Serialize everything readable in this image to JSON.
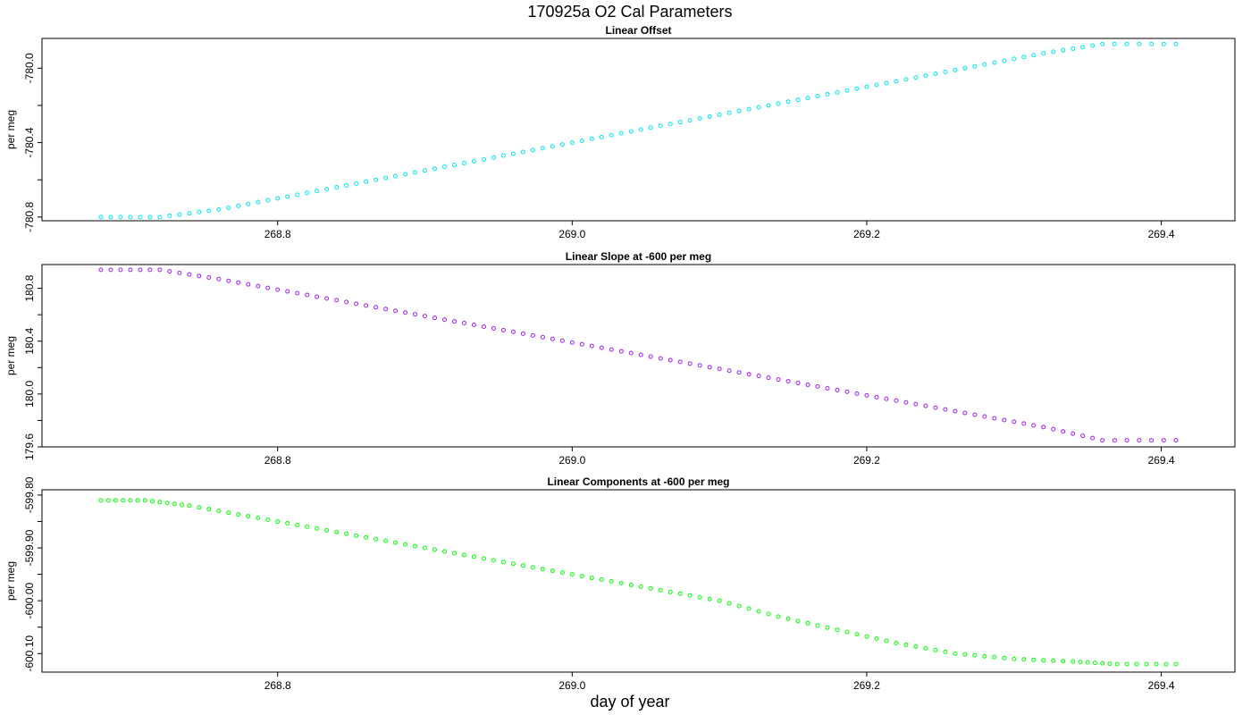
{
  "figure": {
    "title": "170925a   O2 Cal Parameters",
    "xlabel": "day of year"
  },
  "chart_data": [
    {
      "type": "scatter",
      "title": "Linear Offset",
      "ylabel": "per meg",
      "xlim": [
        268.64,
        269.45
      ],
      "ylim": [
        -780.82,
        -779.84
      ],
      "x_ticks": [
        "268.8",
        "269.0",
        "269.2",
        "269.4"
      ],
      "y_ticks": [
        "-780.0",
        "-780.4",
        "-780.8"
      ],
      "color": "#00e5ee",
      "series": [
        {
          "x": [
            268.68,
            268.72,
            268.76,
            268.8,
            268.84,
            268.88,
            268.92,
            268.96,
            269.0,
            269.04,
            269.08,
            269.12,
            269.16,
            269.2,
            269.24,
            269.28,
            269.32,
            269.36,
            269.41
          ],
          "y": [
            -780.8,
            -780.8,
            -780.76,
            -780.7,
            -780.64,
            -780.58,
            -780.52,
            -780.46,
            -780.4,
            -780.34,
            -780.28,
            -780.22,
            -780.16,
            -780.1,
            -780.04,
            -779.98,
            -779.92,
            -779.87,
            -779.87
          ]
        }
      ]
    },
    {
      "type": "scatter",
      "title": "Linear Slope at -600 per meg",
      "ylabel": "per meg",
      "xlim": [
        268.64,
        269.45
      ],
      "ylim": [
        179.6,
        180.98
      ],
      "x_ticks": [
        "268.8",
        "269.0",
        "269.2",
        "269.4"
      ],
      "y_ticks": [
        "180.8",
        "180.4",
        "180.0",
        "179.6"
      ],
      "color": "#a020f0",
      "series": [
        {
          "x": [
            268.68,
            268.72,
            268.76,
            268.8,
            268.84,
            268.88,
            268.92,
            268.96,
            269.0,
            269.04,
            269.08,
            269.12,
            269.16,
            269.2,
            269.24,
            269.28,
            269.32,
            269.36,
            269.41
          ],
          "y": [
            180.94,
            180.94,
            180.87,
            180.79,
            180.71,
            180.63,
            180.55,
            180.47,
            180.39,
            180.31,
            180.23,
            180.15,
            180.07,
            179.99,
            179.91,
            179.83,
            179.75,
            179.65,
            179.65
          ]
        }
      ]
    },
    {
      "type": "scatter",
      "title": "Linear Components at -600 per meg",
      "ylabel": "per meg",
      "xlim": [
        268.64,
        269.45
      ],
      "ylim": [
        -600.135,
        -599.79
      ],
      "x_ticks": [
        "268.8",
        "269.0",
        "269.2",
        "269.4"
      ],
      "y_ticks": [
        "-599.80",
        "-599.90",
        "-600.00",
        "-600.10"
      ],
      "color": "#00ff00",
      "series": [
        {
          "x": [
            268.68,
            268.71,
            268.74,
            268.78,
            268.82,
            268.86,
            268.9,
            268.94,
            268.98,
            269.02,
            269.06,
            269.1,
            269.14,
            269.18,
            269.22,
            269.26,
            269.3,
            269.34,
            269.37,
            269.41
          ],
          "y": [
            -599.81,
            -599.81,
            -599.82,
            -599.84,
            -599.86,
            -599.88,
            -599.9,
            -599.92,
            -599.94,
            -599.96,
            -599.98,
            -600.0,
            -600.03,
            -600.055,
            -600.08,
            -600.1,
            -600.11,
            -600.115,
            -600.12,
            -600.12
          ]
        }
      ]
    }
  ]
}
